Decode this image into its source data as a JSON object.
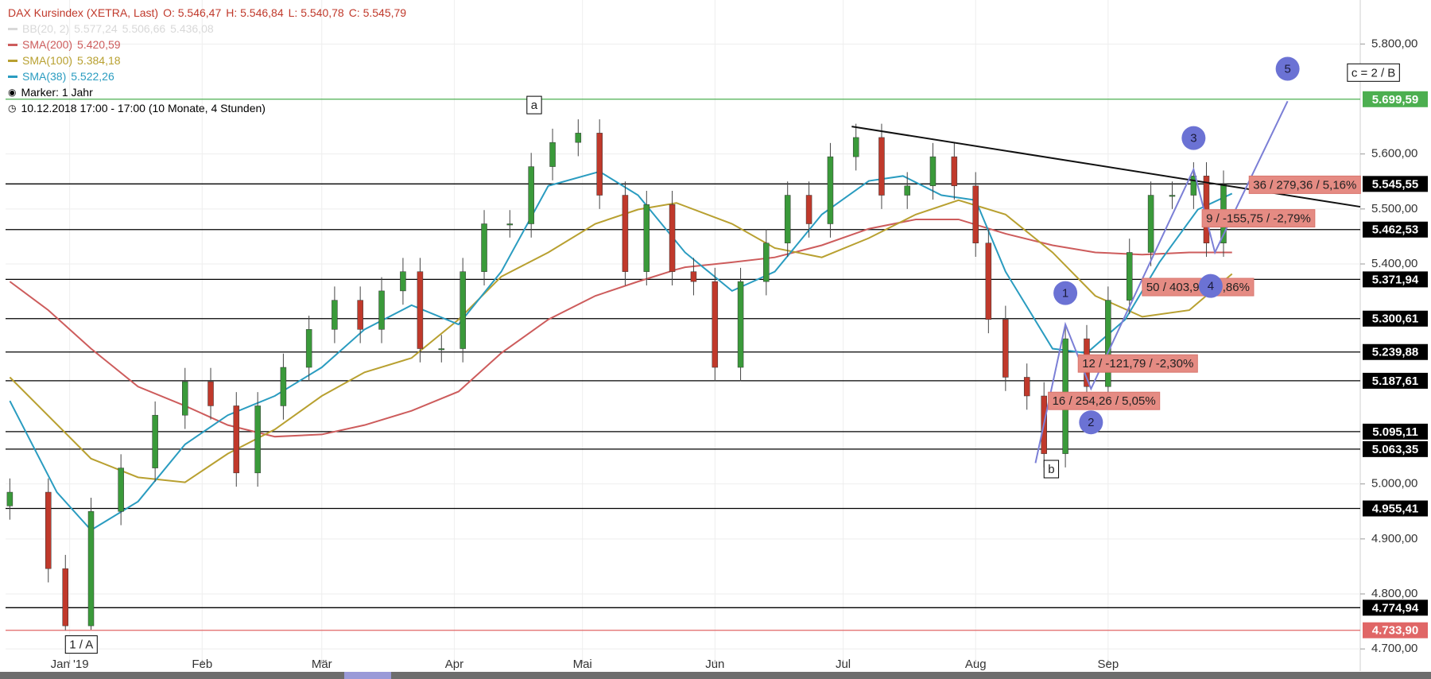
{
  "chart_data": {
    "type": "candlestick",
    "header": {
      "title": "DAX Kursindex (XETRA, Last)",
      "ohlc": [
        "O: 5.546,47",
        "H: 5.546,84",
        "L: 5.540,78",
        "C: 5.545,79"
      ]
    },
    "bollinger": {
      "name": "BB(20, 2)",
      "labels": [
        "5.577,24",
        "5.506,66",
        "5.436,08"
      ],
      "color": "#d8d8d8"
    },
    "marker": "Marker: 1 Jahr",
    "period": "10.12.2018 17:00 - 17:00  (10 Monate, 4 Stunden)",
    "up_color": "#3a9a3a",
    "down_color": "#c0392b",
    "x": [
      -14,
      -5,
      -1,
      5,
      12,
      20,
      27,
      33,
      39,
      44,
      50,
      56,
      62,
      68,
      73,
      78,
      82,
      87,
      92,
      97,
      103,
      108,
      113,
      119,
      124,
      130,
      135,
      141,
      146,
      151,
      157,
      163,
      168,
      173,
      178,
      184,
      190,
      196,
      202,
      207,
      212,
      215,
      219,
      224,
      228,
      233,
      238,
      243,
      248,
      253,
      258,
      263,
      266,
      270
    ],
    "open": [
      4960,
      4985,
      4846,
      4742,
      4950,
      5029,
      5125,
      5186,
      5142,
      5020,
      5142,
      5212,
      5281,
      5334,
      5281,
      5351,
      5386,
      5246,
      5246,
      5386,
      5473,
      5473,
      5577,
      5621,
      5638,
      5525,
      5386,
      5508,
      5386,
      5368,
      5212,
      5368,
      5438,
      5525,
      5473,
      5595,
      5630,
      5525,
      5542,
      5595,
      5542,
      5438,
      5299,
      5194,
      5160,
      5055,
      5264,
      5177,
      5334,
      5421,
      5525,
      5525,
      5560,
      5438
    ],
    "high": [
      5010,
      5010,
      4871,
      4975,
      5054,
      5150,
      5211,
      5211,
      5167,
      5167,
      5237,
      5306,
      5359,
      5359,
      5376,
      5411,
      5411,
      5271,
      5411,
      5498,
      5498,
      5602,
      5646,
      5663,
      5663,
      5550,
      5533,
      5533,
      5411,
      5393,
      5393,
      5463,
      5550,
      5550,
      5620,
      5655,
      5655,
      5567,
      5620,
      5620,
      5567,
      5463,
      5324,
      5219,
      5185,
      5289,
      5289,
      5359,
      5446,
      5550,
      5550,
      5585,
      5585,
      5570
    ],
    "low": [
      4935,
      4821,
      4734,
      4735,
      4925,
      5004,
      5100,
      5117,
      4995,
      4995,
      5117,
      5187,
      5256,
      5256,
      5256,
      5326,
      5221,
      5221,
      5221,
      5361,
      5448,
      5448,
      5552,
      5596,
      5500,
      5361,
      5361,
      5361,
      5343,
      5187,
      5187,
      5343,
      5413,
      5448,
      5448,
      5570,
      5500,
      5500,
      5517,
      5517,
      5413,
      5274,
      5169,
      5135,
      5030,
      5030,
      5152,
      5152,
      5309,
      5396,
      5500,
      5500,
      5413,
      5413
    ],
    "close": [
      4985,
      4846,
      4742,
      4950,
      5029,
      5125,
      5186,
      5142,
      5020,
      5142,
      5212,
      5281,
      5334,
      5281,
      5351,
      5386,
      5246,
      5246,
      5386,
      5473,
      5473,
      5577,
      5621,
      5638,
      5525,
      5386,
      5508,
      5386,
      5368,
      5212,
      5368,
      5438,
      5525,
      5473,
      5595,
      5630,
      5525,
      5542,
      5595,
      5542,
      5438,
      5299,
      5194,
      5160,
      5055,
      5264,
      5177,
      5334,
      5421,
      5525,
      5525,
      5560,
      5438,
      5545
    ],
    "indicators": [
      {
        "name": "SMA(200)",
        "value_label": "5.420,59",
        "color": "#cd5c5c",
        "x": [
          -14,
          -5,
          5,
          16,
          27,
          37,
          48,
          59,
          69,
          80,
          91,
          101,
          112,
          123,
          133,
          142,
          144,
          155,
          165,
          176,
          187,
          198,
          208,
          219,
          230,
          240,
          251,
          262,
          272
        ],
        "values": [
          5368,
          5316,
          5246,
          5177,
          5142,
          5107,
          5086,
          5090,
          5107,
          5133,
          5168,
          5238,
          5299,
          5342,
          5368,
          5390,
          5394,
          5403,
          5412,
          5434,
          5464,
          5481,
          5481,
          5455,
          5434,
          5421,
          5417,
          5421,
          5421
        ]
      },
      {
        "name": "SMA(100)",
        "value_label": "5.384,18",
        "color": "#b8a030",
        "x": [
          -14,
          5,
          16,
          27,
          37,
          48,
          59,
          69,
          80,
          91,
          101,
          112,
          123,
          133,
          142,
          155,
          165,
          176,
          187,
          198,
          208,
          219,
          230,
          240,
          251,
          262,
          272
        ],
        "values": [
          5194,
          5046,
          5012,
          5003,
          5055,
          5099,
          5160,
          5203,
          5229,
          5299,
          5377,
          5421,
          5473,
          5499,
          5511,
          5473,
          5429,
          5412,
          5447,
          5490,
          5516,
          5490,
          5421,
          5342,
          5304,
          5316,
          5382
        ]
      },
      {
        "name": "SMA(38)",
        "value_label": "5.522,26",
        "color": "#2a9cc0",
        "x": [
          -14,
          -3,
          5,
          16,
          27,
          37,
          48,
          59,
          69,
          80,
          91,
          101,
          112,
          124,
          133,
          144,
          155,
          165,
          176,
          187,
          195,
          204,
          212,
          219,
          230,
          238,
          247,
          255,
          264,
          272
        ],
        "values": [
          5151,
          4985,
          4916,
          4968,
          5072,
          5125,
          5160,
          5212,
          5281,
          5325,
          5290,
          5386,
          5542,
          5568,
          5525,
          5421,
          5351,
          5386,
          5490,
          5551,
          5560,
          5525,
          5516,
          5386,
          5246,
          5238,
          5299,
          5403,
          5499,
          5528
        ]
      }
    ],
    "xlim": [
      -15,
      302
    ],
    "ylim": [
      4680,
      5880
    ],
    "xticks": [
      {
        "value": 0,
        "label": "Jan '19"
      },
      {
        "value": 31,
        "label": "Feb"
      },
      {
        "value": 59,
        "label": "Mär"
      },
      {
        "value": 90,
        "label": "Apr"
      },
      {
        "value": 120,
        "label": "Mai"
      },
      {
        "value": 151,
        "label": "Jun"
      },
      {
        "value": 181,
        "label": "Jul"
      },
      {
        "value": 212,
        "label": "Aug"
      },
      {
        "value": 243,
        "label": "Sep"
      }
    ],
    "yticks": [
      {
        "value": 4700,
        "label": "4.700,00"
      },
      {
        "value": 4800,
        "label": "4.800,00"
      },
      {
        "value": 4900,
        "label": "4.900,00"
      },
      {
        "value": 5000,
        "label": "5.000,00"
      },
      {
        "value": 5400,
        "label": "5.400,00"
      },
      {
        "value": 5500,
        "label": "5.500,00"
      },
      {
        "value": 5600,
        "label": "5.600,00"
      },
      {
        "value": 5800,
        "label": "5.800,00"
      }
    ],
    "grid": true,
    "levels": [
      {
        "value": 5699.59,
        "label": "5.699,59",
        "color": "#4caf50"
      },
      {
        "value": 5545.55,
        "label": "5.545,55",
        "color": "#000000"
      },
      {
        "value": 5462.53,
        "label": "5.462,53",
        "color": "#000000"
      },
      {
        "value": 5371.94,
        "label": "5.371,94",
        "color": "#000000"
      },
      {
        "value": 5300.61,
        "label": "5.300,61",
        "color": "#000000"
      },
      {
        "value": 5239.88,
        "label": "5.239,88",
        "color": "#000000"
      },
      {
        "value": 5187.61,
        "label": "5.187,61",
        "color": "#000000"
      },
      {
        "value": 5095.11,
        "label": "5.095,11",
        "color": "#000000"
      },
      {
        "value": 5063.35,
        "label": "5.063,35",
        "color": "#000000"
      },
      {
        "value": 4955.41,
        "label": "4.955,41",
        "color": "#000000"
      },
      {
        "value": 4774.94,
        "label": "4.774,94",
        "color": "#000000"
      },
      {
        "value": 4733.9,
        "label": "4.733,90",
        "color": "#e06666"
      }
    ],
    "trendlines": [
      {
        "color": "#111111",
        "x": [
          183,
          302
        ],
        "values": [
          5650,
          5504
        ]
      },
      {
        "color": "#7b7fd6",
        "x": [
          226,
          233,
          239,
          263,
          268,
          285
        ],
        "values": [
          5038,
          5290,
          5173,
          5572,
          5421,
          5696
        ]
      }
    ],
    "annotations": [
      {
        "text": "1 / A",
        "style": "box",
        "x": -1,
        "y": 4708
      },
      {
        "text": "a",
        "style": "box",
        "x": 107,
        "y": 5689
      },
      {
        "text": "b",
        "style": "box",
        "x": 228,
        "y": 5027
      },
      {
        "text": "c = 2 / B",
        "style": "box",
        "x": 299,
        "y": 5748
      },
      {
        "text": "16 / 254,26 / 5,05%",
        "style": "red-box",
        "x": 229,
        "y": 5151
      },
      {
        "text": "12 / -121,79 / -2,30%",
        "style": "red-box",
        "x": 236,
        "y": 5219
      },
      {
        "text": "50 / 403,94 / 7,86%",
        "style": "red-box",
        "x": 251,
        "y": 5358
      },
      {
        "text": "9 / -155,75 / -2,79%",
        "style": "red-box",
        "x": 265,
        "y": 5483
      },
      {
        "text": "36 / 279,36 / 5,16%",
        "style": "red-box",
        "x": 276,
        "y": 5544
      },
      {
        "text": "1",
        "style": "circle",
        "x": 233,
        "y": 5347
      },
      {
        "text": "2",
        "style": "circle",
        "x": 239,
        "y": 5112
      },
      {
        "text": "3",
        "style": "circle",
        "x": 263,
        "y": 5629
      },
      {
        "text": "4",
        "style": "circle",
        "x": 267,
        "y": 5360
      },
      {
        "text": "5",
        "style": "circle",
        "x": 285,
        "y": 5755
      }
    ]
  }
}
